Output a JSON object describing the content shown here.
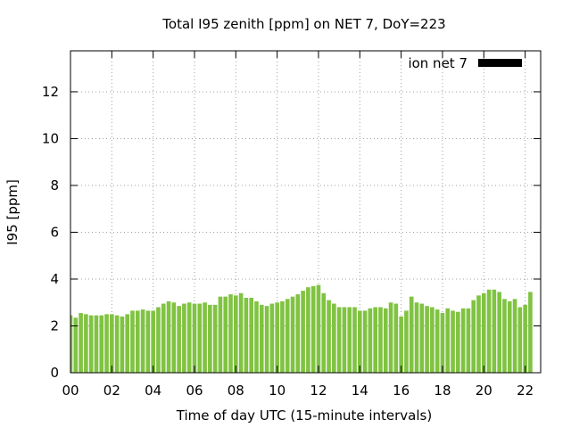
{
  "chart_data": {
    "type": "bar",
    "title": "Total I95 zenith [ppm] on NET 7, DoY=223",
    "xlabel": "Time of day UTC (15-minute intervals)",
    "ylabel": "I95 [ppm]",
    "xlim": [
      0,
      22.75
    ],
    "ylim": [
      0,
      13.75
    ],
    "xticks": [
      "00",
      "02",
      "04",
      "06",
      "08",
      "10",
      "12",
      "14",
      "16",
      "18",
      "20",
      "22"
    ],
    "yticks": [
      "0",
      "2",
      "4",
      "6",
      "8",
      "10",
      "12"
    ],
    "grid": true,
    "legend_position": "top-right",
    "series": [
      {
        "name": "ion net 7",
        "color": "#80c342",
        "legend_swatch_color": "#000000",
        "interval_hours": 0.25,
        "values": [
          2.45,
          2.35,
          2.55,
          2.5,
          2.45,
          2.45,
          2.45,
          2.5,
          2.5,
          2.45,
          2.4,
          2.5,
          2.65,
          2.65,
          2.7,
          2.65,
          2.65,
          2.8,
          2.95,
          3.05,
          3.0,
          2.85,
          2.95,
          3.0,
          2.95,
          2.95,
          3.0,
          2.9,
          2.9,
          3.25,
          3.25,
          3.35,
          3.3,
          3.4,
          3.2,
          3.2,
          3.05,
          2.9,
          2.85,
          2.95,
          3.0,
          3.05,
          3.15,
          3.25,
          3.35,
          3.5,
          3.65,
          3.7,
          3.75,
          3.4,
          3.1,
          2.95,
          2.8,
          2.8,
          2.8,
          2.8,
          2.65,
          2.65,
          2.75,
          2.8,
          2.8,
          2.75,
          3.0,
          2.95,
          2.4,
          2.65,
          3.25,
          3.0,
          2.95,
          2.85,
          2.8,
          2.7,
          2.55,
          2.75,
          2.65,
          2.6,
          2.75,
          2.75,
          3.1,
          3.3,
          3.4,
          3.55,
          3.55,
          3.45,
          3.15,
          3.05,
          3.15,
          2.8,
          2.9,
          3.45
        ]
      }
    ]
  }
}
